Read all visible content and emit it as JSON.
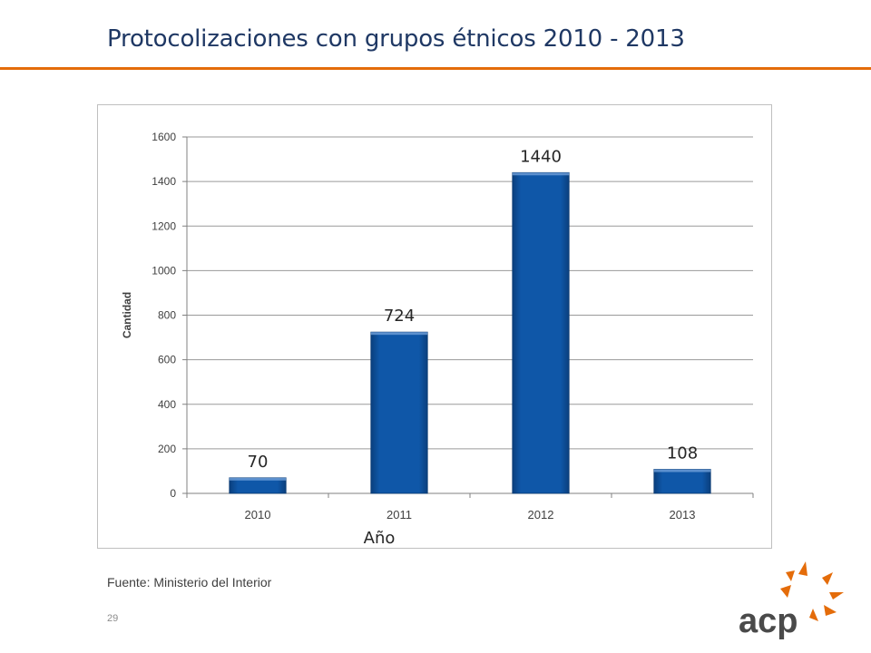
{
  "slide": {
    "title": "Protocolizaciones con grupos étnicos 2010 - 2013",
    "source": "Fuente: Ministerio del Interior",
    "page_number": "29",
    "logo_text": "acp"
  },
  "colors": {
    "accent": "#e46c0a",
    "bar": "#0b4f9c",
    "title": "#1f3864"
  },
  "chart_data": {
    "type": "bar",
    "title": "",
    "categories": [
      "2010",
      "2011",
      "2012",
      "2013"
    ],
    "values": [
      70,
      724,
      1440,
      108
    ],
    "data_labels": [
      "70",
      "724",
      "1440",
      "108"
    ],
    "xlabel": "Año",
    "ylabel": "Cantidad",
    "ylim": [
      0,
      1600
    ],
    "yticks": [
      0,
      200,
      400,
      600,
      800,
      1000,
      1200,
      1400,
      1600
    ],
    "grid": true,
    "legend": "none"
  }
}
